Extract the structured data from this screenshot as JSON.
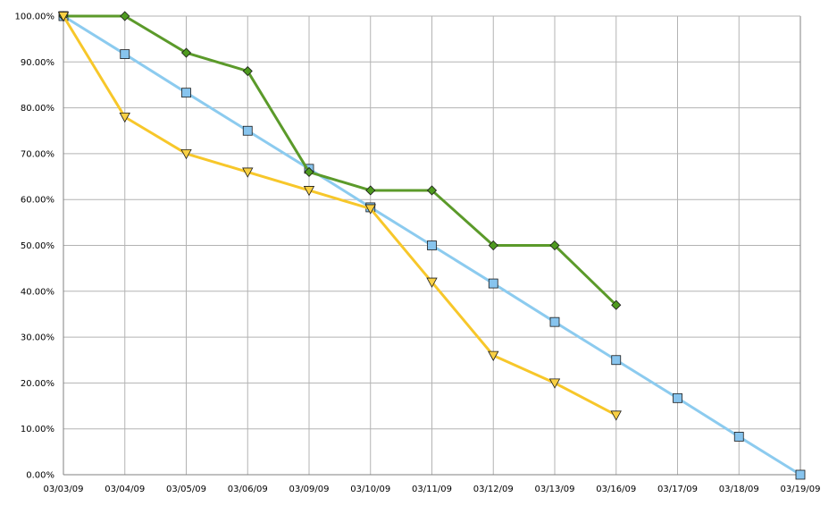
{
  "chart_data": {
    "type": "line",
    "title": "",
    "xlabel": "",
    "ylabel": "",
    "categories": [
      "03/03/09",
      "03/04/09",
      "03/05/09",
      "03/06/09",
      "03/09/09",
      "03/10/09",
      "03/11/09",
      "03/12/09",
      "03/13/09",
      "03/16/09",
      "03/17/09",
      "03/18/09",
      "03/19/09"
    ],
    "y_ticks": [
      "0.00%",
      "10.00%",
      "20.00%",
      "30.00%",
      "40.00%",
      "50.00%",
      "60.00%",
      "70.00%",
      "80.00%",
      "90.00%",
      "100.00%"
    ],
    "ylim": [
      0,
      100
    ],
    "grid": true,
    "legend": "none",
    "series": [
      {
        "color": "#8CCBEF",
        "marker": "square",
        "marker_fill": "#87C4EE",
        "values": [
          100,
          91.7,
          83.3,
          75,
          66.7,
          58.3,
          50,
          41.7,
          33.3,
          25,
          16.7,
          8.3,
          0
        ]
      },
      {
        "color": "#5B9A2A",
        "marker": "diamond",
        "marker_fill": "#4E9A1F",
        "values": [
          100,
          100,
          92,
          88,
          66,
          62,
          62,
          50,
          50,
          37,
          null,
          null,
          null
        ]
      },
      {
        "color": "#F7C72A",
        "marker": "triangle-down",
        "marker_fill": "#F9D044",
        "values": [
          100,
          78,
          70,
          66,
          62,
          58,
          42,
          26,
          20,
          13,
          null,
          null,
          null
        ]
      }
    ]
  }
}
